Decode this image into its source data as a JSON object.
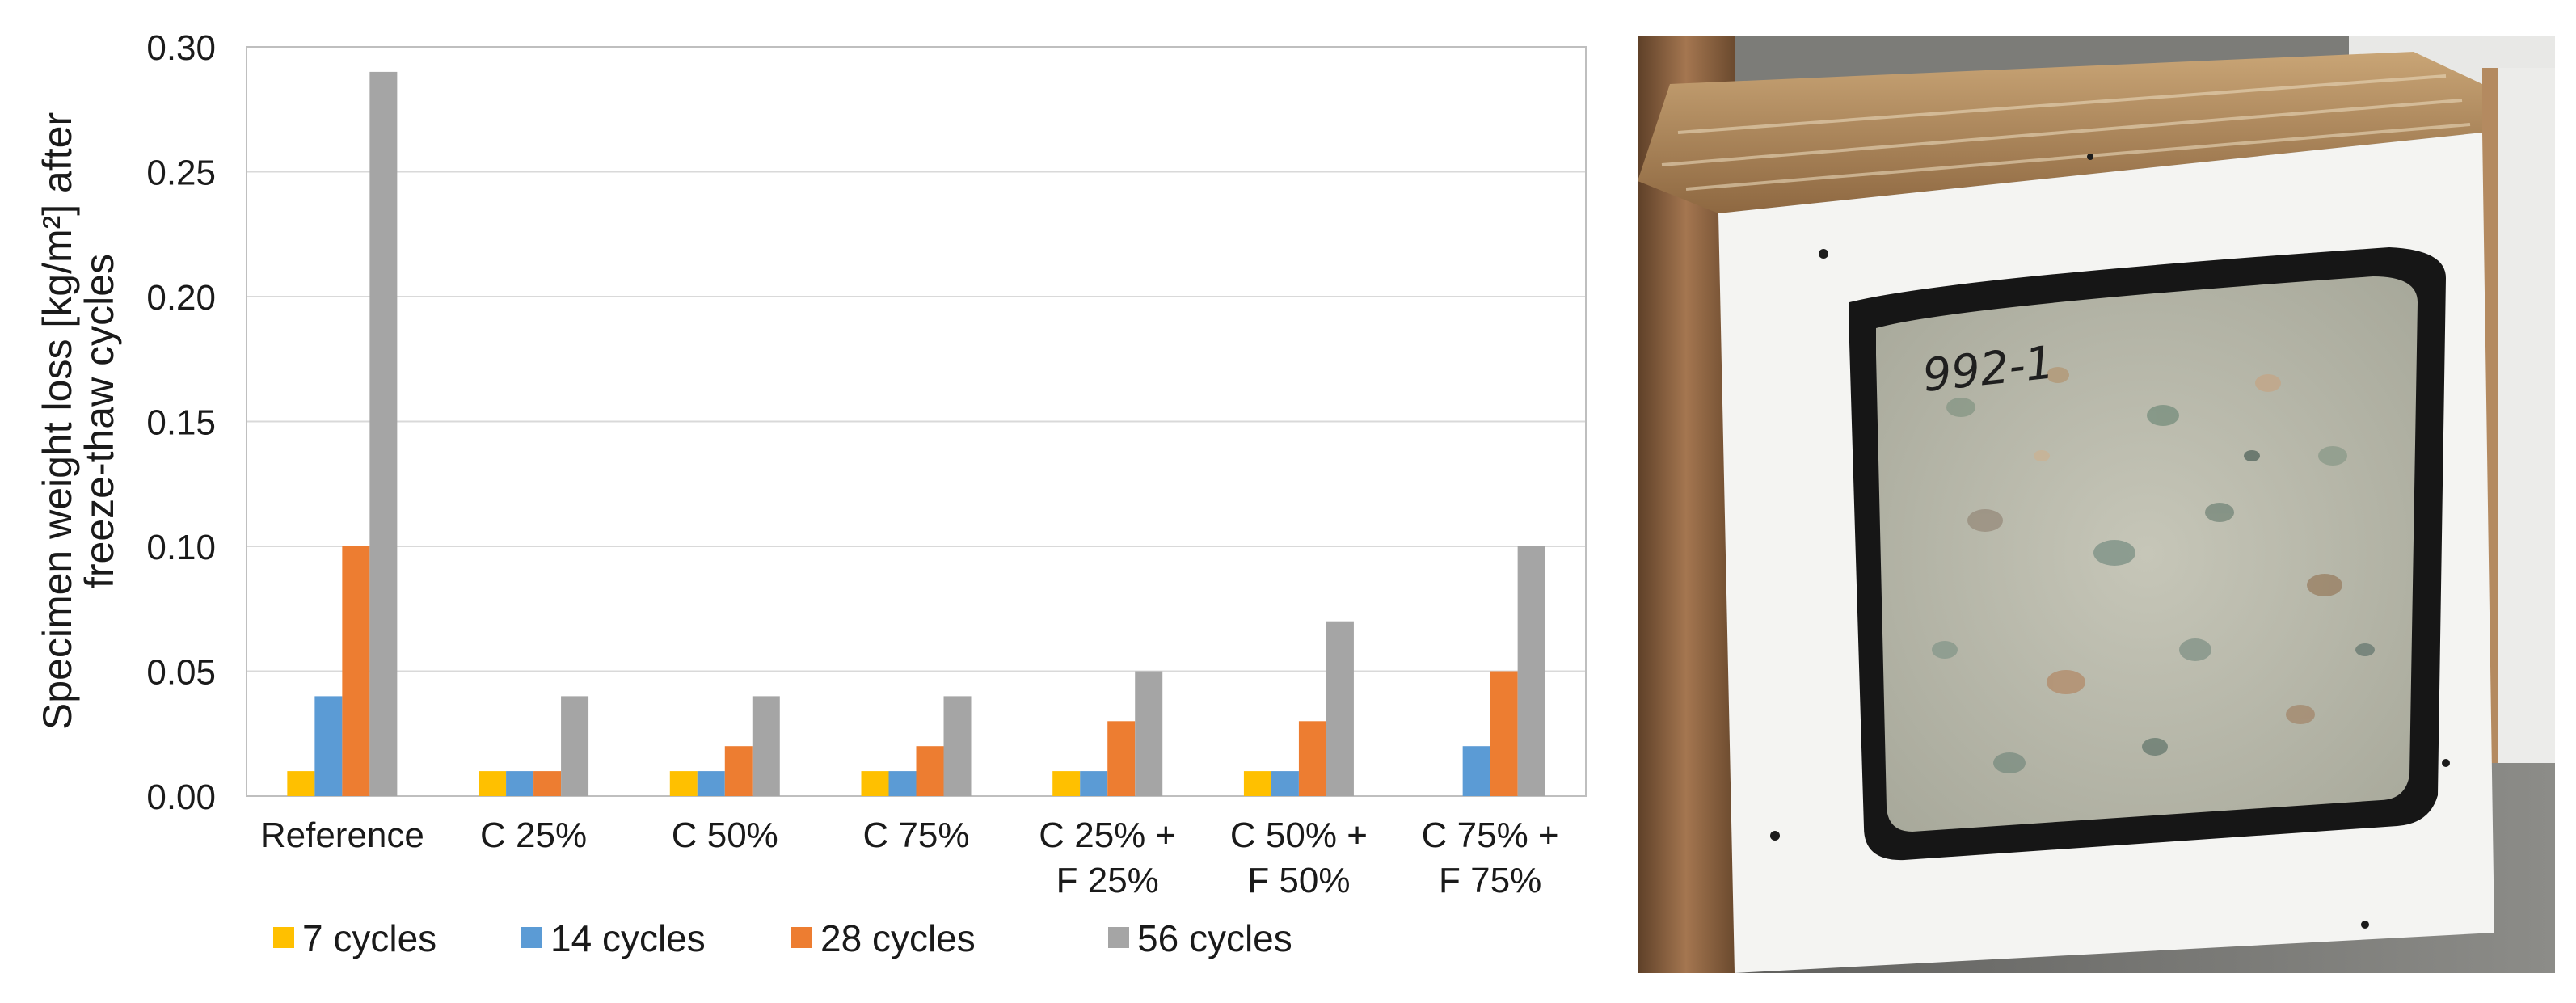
{
  "chart_data": {
    "type": "bar",
    "title": "",
    "xlabel": "",
    "ylabel_lines": [
      "Specimen weight loss [kg/m²] after",
      "freeze-thaw cycles"
    ],
    "categories": [
      [
        "Reference"
      ],
      [
        "C 25%"
      ],
      [
        "C 50%"
      ],
      [
        "C 75%"
      ],
      [
        "C 25% +",
        "F 25%"
      ],
      [
        "C 50% +",
        "F 50%"
      ],
      [
        "C 75% +",
        "F 75%"
      ]
    ],
    "ylim": [
      0,
      0.3
    ],
    "yticks": [
      "0.00",
      "0.05",
      "0.10",
      "0.15",
      "0.20",
      "0.25",
      "0.30"
    ],
    "grid": true,
    "legend_position": "bottom",
    "series": [
      {
        "name": "7 cycles",
        "color": "#FFC000",
        "values": [
          0.01,
          0.01,
          0.01,
          0.01,
          0.01,
          0.01,
          null
        ]
      },
      {
        "name": "14 cycles",
        "color": "#5B9BD5",
        "values": [
          0.04,
          0.01,
          0.01,
          0.01,
          0.01,
          0.01,
          0.02
        ]
      },
      {
        "name": "28  cycles",
        "color": "#ED7D31",
        "values": [
          0.1,
          0.01,
          0.02,
          0.02,
          0.03,
          0.03,
          0.05
        ]
      },
      {
        "name": "56  cycles",
        "color": "#A5A5A5",
        "values": [
          0.29,
          0.04,
          0.04,
          0.04,
          0.05,
          0.07,
          0.1
        ]
      }
    ]
  },
  "photo": {
    "specimen_label": "992-1"
  }
}
